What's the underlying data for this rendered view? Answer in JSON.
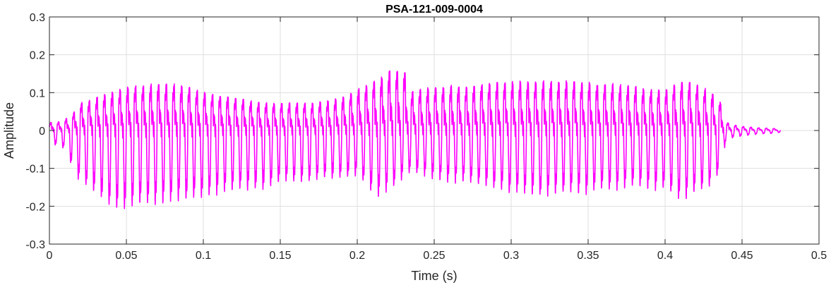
{
  "chart_data": {
    "type": "line",
    "title": "PSA-121-009-0004",
    "xlabel": "Time (s)",
    "ylabel": "Amplitude",
    "xlim": [
      0,
      0.5
    ],
    "ylim": [
      -0.3,
      0.3
    ],
    "xticks": [
      0,
      0.05,
      0.1,
      0.15,
      0.2,
      0.25,
      0.3,
      0.35,
      0.4,
      0.45,
      0.5
    ],
    "xtick_labels": [
      "0",
      "0.05",
      "0.1",
      "0.15",
      "0.2",
      "0.25",
      "0.3",
      "0.35",
      "0.4",
      "0.45",
      "0.5"
    ],
    "yticks": [
      -0.3,
      -0.2,
      -0.1,
      0,
      0.1,
      0.2,
      0.3
    ],
    "ytick_labels": [
      "-0.3",
      "-0.2",
      "-0.1",
      "0",
      "0.1",
      "0.2",
      "0.3"
    ],
    "grid": true,
    "series": [
      {
        "color": "#ff00ff",
        "x_end": 0.475,
        "pitch_hz": 200,
        "envelope": {
          "x": [
            0,
            0.005,
            0.01,
            0.015,
            0.02,
            0.03,
            0.04,
            0.05,
            0.06,
            0.07,
            0.08,
            0.09,
            0.1,
            0.11,
            0.12,
            0.13,
            0.14,
            0.15,
            0.16,
            0.17,
            0.18,
            0.19,
            0.2,
            0.21,
            0.215,
            0.22,
            0.225,
            0.23,
            0.235,
            0.24,
            0.25,
            0.26,
            0.27,
            0.28,
            0.29,
            0.3,
            0.31,
            0.32,
            0.33,
            0.34,
            0.35,
            0.36,
            0.37,
            0.38,
            0.39,
            0.4,
            0.41,
            0.42,
            0.43,
            0.435,
            0.44,
            0.445,
            0.45,
            0.46,
            0.47,
            0.475
          ],
          "upper": [
            0.03,
            0.03,
            0.04,
            0.06,
            0.1,
            0.12,
            0.14,
            0.16,
            0.165,
            0.17,
            0.17,
            0.16,
            0.14,
            0.13,
            0.12,
            0.11,
            0.1,
            0.1,
            0.1,
            0.1,
            0.11,
            0.12,
            0.15,
            0.18,
            0.19,
            0.22,
            0.225,
            0.23,
            0.14,
            0.15,
            0.16,
            0.165,
            0.16,
            0.17,
            0.175,
            0.18,
            0.18,
            0.18,
            0.18,
            0.18,
            0.175,
            0.17,
            0.17,
            0.16,
            0.15,
            0.15,
            0.18,
            0.17,
            0.14,
            0.12,
            0.03,
            0.02,
            0.015,
            0.01,
            0.008,
            0.005
          ],
          "lower": [
            -0.04,
            -0.04,
            -0.05,
            -0.1,
            -0.14,
            -0.17,
            -0.21,
            -0.21,
            -0.2,
            -0.2,
            -0.19,
            -0.19,
            -0.18,
            -0.17,
            -0.16,
            -0.16,
            -0.16,
            -0.14,
            -0.14,
            -0.14,
            -0.13,
            -0.13,
            -0.12,
            -0.17,
            -0.18,
            -0.16,
            -0.15,
            -0.13,
            -0.11,
            -0.12,
            -0.13,
            -0.14,
            -0.14,
            -0.15,
            -0.16,
            -0.17,
            -0.17,
            -0.18,
            -0.17,
            -0.17,
            -0.17,
            -0.16,
            -0.16,
            -0.15,
            -0.16,
            -0.16,
            -0.19,
            -0.17,
            -0.15,
            -0.12,
            -0.02,
            -0.02,
            -0.015,
            -0.01,
            -0.008,
            -0.005
          ]
        }
      }
    ]
  }
}
